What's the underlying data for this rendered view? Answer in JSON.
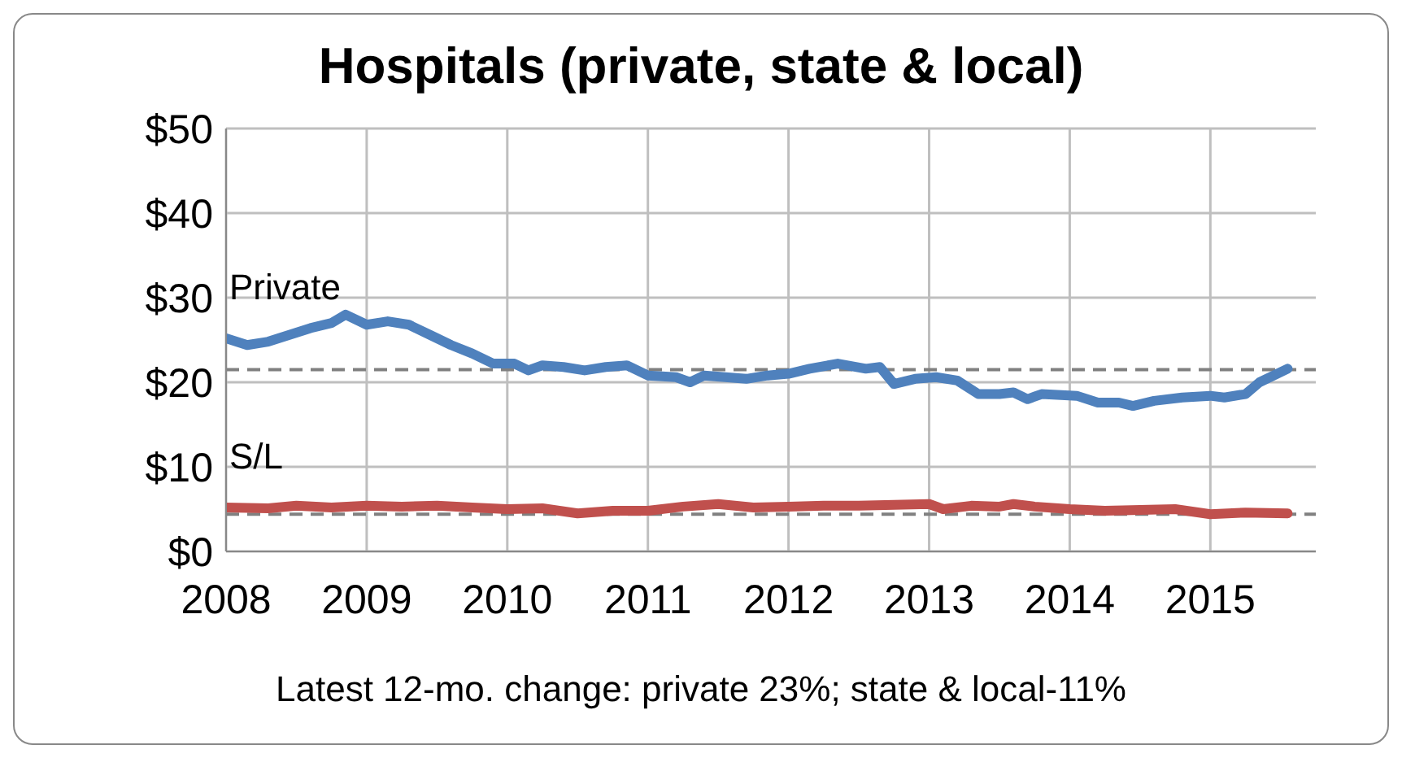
{
  "chart_data": {
    "type": "line",
    "title": "Hospitals (private, state & local)",
    "xlim": [
      2008,
      2015.75
    ],
    "xticks": [
      2008,
      2009,
      2010,
      2011,
      2012,
      2013,
      2014,
      2015
    ],
    "ylim": [
      0,
      50
    ],
    "yticks": [
      {
        "value": 0,
        "label": "$0"
      },
      {
        "value": 10,
        "label": "$10"
      },
      {
        "value": 20,
        "label": "$20"
      },
      {
        "value": 30,
        "label": "$30"
      },
      {
        "value": 40,
        "label": "$40"
      },
      {
        "value": 50,
        "label": "$50"
      }
    ],
    "grid": true,
    "marker": "none",
    "line_style": "solid",
    "series": [
      {
        "name": "Private",
        "color": "#4f81bd",
        "x": [
          2008,
          2008.15,
          2008.3,
          2008.45,
          2008.6,
          2008.75,
          2008.85,
          2009,
          2009.15,
          2009.3,
          2009.45,
          2009.6,
          2009.75,
          2009.9,
          2010.05,
          2010.15,
          2010.25,
          2010.4,
          2010.55,
          2010.7,
          2010.85,
          2011,
          2011.2,
          2011.3,
          2011.4,
          2011.55,
          2011.7,
          2011.85,
          2012,
          2012.15,
          2012.35,
          2012.55,
          2012.65,
          2012.75,
          2012.9,
          2013.05,
          2013.2,
          2013.35,
          2013.5,
          2013.6,
          2013.7,
          2013.8,
          2014.05,
          2014.2,
          2014.35,
          2014.45,
          2014.6,
          2014.8,
          2015,
          2015.1,
          2015.25,
          2015.35,
          2015.55
        ],
        "values": [
          25.2,
          24.4,
          24.8,
          25.6,
          26.4,
          27,
          28,
          26.8,
          27.2,
          26.8,
          25.6,
          24.4,
          23.4,
          22.2,
          22.2,
          21.4,
          22,
          21.8,
          21.4,
          21.8,
          22,
          20.8,
          20.6,
          20,
          20.8,
          20.6,
          20.4,
          20.8,
          21,
          21.6,
          22.2,
          21.6,
          21.8,
          19.8,
          20.4,
          20.6,
          20.2,
          18.6,
          18.6,
          18.8,
          18,
          18.6,
          18.4,
          17.6,
          17.6,
          17.2,
          17.8,
          18.2,
          18.4,
          18.2,
          18.6,
          20,
          21.6
        ]
      },
      {
        "name": "S/L",
        "color": "#c0504d",
        "x": [
          2008,
          2008.3,
          2008.5,
          2008.75,
          2009,
          2009.25,
          2009.5,
          2009.75,
          2010,
          2010.25,
          2010.5,
          2010.75,
          2011,
          2011.25,
          2011.5,
          2011.75,
          2012,
          2012.25,
          2012.5,
          2012.75,
          2013,
          2013.1,
          2013.3,
          2013.5,
          2013.6,
          2013.75,
          2014,
          2014.25,
          2014.5,
          2014.75,
          2015,
          2015.25,
          2015.55
        ],
        "values": [
          5.2,
          5.1,
          5.4,
          5.2,
          5.4,
          5.3,
          5.4,
          5.2,
          5,
          5.1,
          4.5,
          4.8,
          4.8,
          5.3,
          5.6,
          5.2,
          5.3,
          5.4,
          5.4,
          5.5,
          5.6,
          5,
          5.4,
          5.3,
          5.6,
          5.3,
          5,
          4.8,
          4.9,
          5,
          4.4,
          4.6,
          4.5
        ]
      }
    ],
    "ref_lines": [
      {
        "axis": "y",
        "value": 21.5,
        "color": "#808080",
        "line_style": "dashed"
      },
      {
        "axis": "y",
        "value": 4.4,
        "color": "#808080",
        "line_style": "dashed"
      }
    ],
    "annotations": [
      "Latest 12-mo. change: private 23%; state & local-11%"
    ]
  }
}
